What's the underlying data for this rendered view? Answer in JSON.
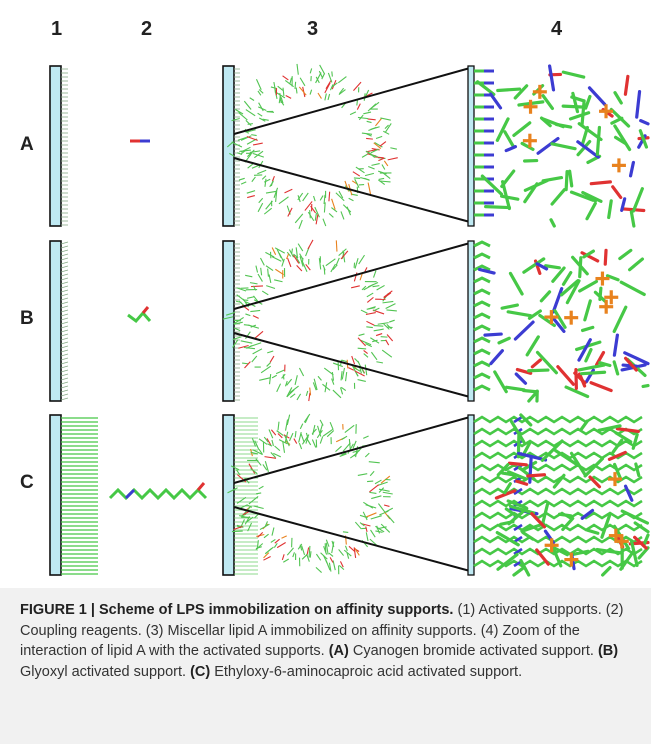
{
  "columns": [
    "1",
    "2",
    "3",
    "4"
  ],
  "rows": [
    "A",
    "B",
    "C"
  ],
  "caption": {
    "figure_label": "FIGURE 1 | Scheme of LPS immobilization on affinity supports.",
    "part1": " (1) Activated supports. (2) Coupling reagents. (3) Miscellar lipid A immobilized on affinity supports. (4) Zoom of the interaction of lipid A with the activated supports. ",
    "a_label": "(A)",
    "a_text": " Cyanogen bromide activated support. ",
    "b_label": "(B)",
    "b_text": " Glyoxyl activated support. ",
    "c_label": "(C)",
    "c_text": " Ethyloxy-6-aminocaproic acid activated support."
  },
  "colors": {
    "support_fill": "#bfe9f2",
    "carbon": "#46c846",
    "oxygen": "#e03232",
    "nitrogen": "#3c3cd2",
    "phosphorus": "#e8821e",
    "caption_bg": "#f1f1f1"
  }
}
